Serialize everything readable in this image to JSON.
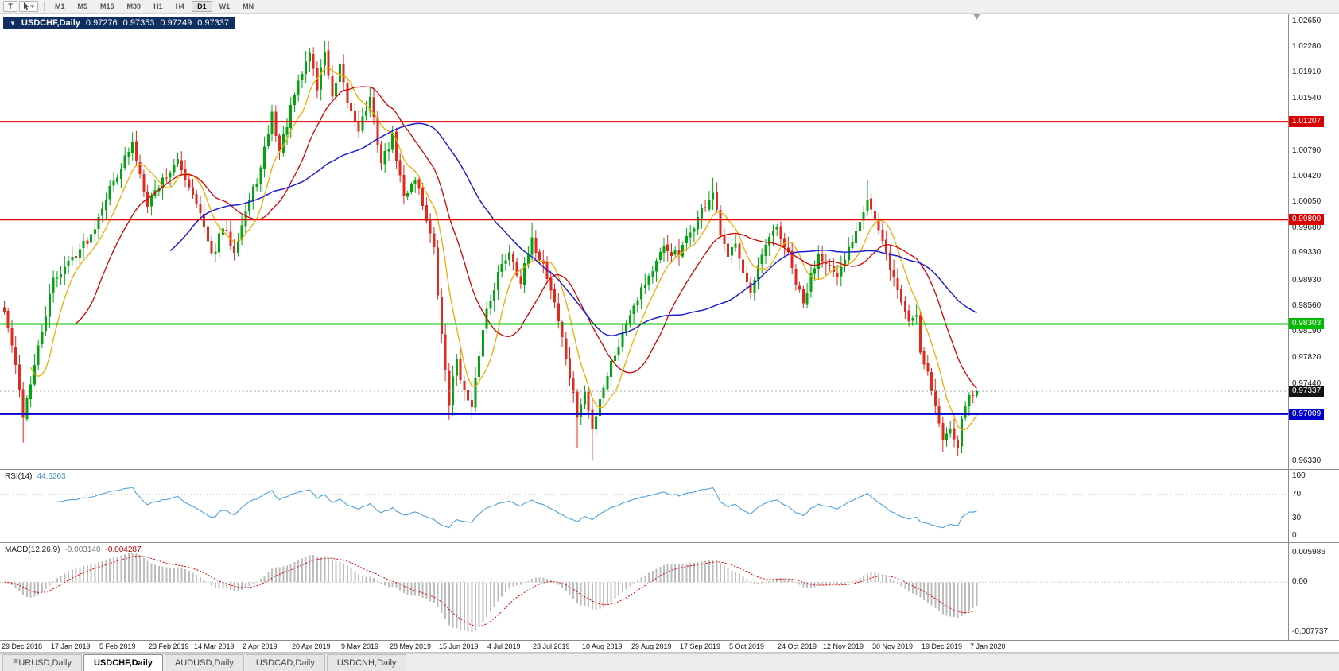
{
  "toolbar": {
    "tool_button_label": "T",
    "timeframes": [
      "M1",
      "M5",
      "M15",
      "M30",
      "H1",
      "H4",
      "D1",
      "W1",
      "MN"
    ],
    "active_timeframe": "D1"
  },
  "chart": {
    "one_click_arrow": "▼",
    "symbol_label": "USDCHF,Daily",
    "ohlc": {
      "open": "0.97276",
      "high": "0.97353",
      "low": "0.97249",
      "close": "0.97337"
    },
    "price_axis": {
      "top": 1.0276,
      "bottom": 0.9622,
      "ticks": [
        "1.02650",
        "1.02280",
        "1.01910",
        "1.01540",
        "1.00790",
        "1.00420",
        "1.00050",
        "0.99680",
        "0.99330",
        "0.98930",
        "0.98560",
        "0.98190",
        "0.97820",
        "0.97440",
        "0.96330"
      ]
    },
    "hlines": [
      {
        "price": 1.01207,
        "label": "1.01207",
        "color": "#dd0000"
      },
      {
        "price": 0.998,
        "label": "0.99800",
        "color": "#dd0000"
      },
      {
        "price": 0.98303,
        "label": "0.98303",
        "color": "#00bb00"
      },
      {
        "price": 0.97009,
        "label": "0.97009",
        "color": "#0000cc"
      }
    ],
    "current_price": {
      "value": 0.97337,
      "label": "0.97337",
      "badge_color": "#111111"
    }
  },
  "rsi": {
    "label": "RSI(14)",
    "value": "44.6263",
    "axis_ticks": [
      "100",
      "70",
      "30",
      "0"
    ],
    "levels": [
      70,
      30
    ]
  },
  "macd": {
    "label": "MACD(12,26,9)",
    "main_value": "-0.003140",
    "signal_value": "-0.004287",
    "axis_top": "0.005986",
    "axis_zero": "0.00",
    "axis_bottom": "-0.007737"
  },
  "date_axis": [
    "29 Dec 2018",
    "17 Jan 2019",
    "5 Feb 2019",
    "23 Feb 2019",
    "14 Mar 2019",
    "2 Apr 2019",
    "20 Apr 2019",
    "9 May 2019",
    "28 May 2019",
    "15 Jun 2019",
    "4 Jul 2019",
    "23 Jul 2019",
    "10 Aug 2019",
    "29 Aug 2019",
    "17 Sep 2019",
    "5 Oct 2019",
    "24 Oct 2019",
    "12 Nov 2019",
    "30 Nov 2019",
    "19 Dec 2019",
    "7 Jan 2020"
  ],
  "tabs": [
    {
      "label": "EURUSD,Daily",
      "active": false
    },
    {
      "label": "USDCHF,Daily",
      "active": true
    },
    {
      "label": "AUDUSD,Daily",
      "active": false
    },
    {
      "label": "USDCAD,Daily",
      "active": false
    },
    {
      "label": "USDCNH,Daily",
      "active": false
    }
  ],
  "colors": {
    "up": "#00a510",
    "down": "#e02a20",
    "ma_fast": "#f0ad00",
    "ma_mid": "#d40000",
    "ma_slow": "#1f1fd0",
    "rsi_line": "#4fa0dc",
    "rsi_level": "#c8c8c8",
    "macd_hist": "#bdbdbd",
    "macd_signal": "#e00000",
    "current_line": "#b0b0b0",
    "shift_marker": "#a0a0a0",
    "axis_text": "#1a1a1a"
  },
  "chart_data": {
    "type": "candlestick",
    "symbol": "USDCHF",
    "timeframe": "Daily",
    "num_candles": 259,
    "seed": 42,
    "left_pad": 4,
    "candle_spacing": 4.74,
    "candle_width": 3,
    "label_step_days": 12.85,
    "last_candle": {
      "o": 0.97276,
      "h": 0.97353,
      "l": 0.97249,
      "c": 0.97337
    },
    "indicators": {
      "ma_fast": 8,
      "ma_mid": 20,
      "ma_slow": 45,
      "rsi_period": 14,
      "macd": [
        12,
        26,
        9
      ]
    },
    "levels": [
      1.01207,
      0.998,
      0.98303,
      0.97009
    ],
    "waypoints": [
      [
        0,
        0.9848
      ],
      [
        2,
        0.98
      ],
      [
        5,
        0.97
      ],
      [
        8,
        0.977
      ],
      [
        13,
        0.9893
      ],
      [
        18,
        0.9925
      ],
      [
        23,
        0.9958
      ],
      [
        26,
        1.0002
      ],
      [
        31,
        1.0058
      ],
      [
        34,
        1.0087
      ],
      [
        38,
        1.0005
      ],
      [
        42,
        1.0038
      ],
      [
        46,
        1.0062
      ],
      [
        51,
        1.0008
      ],
      [
        55,
        0.9926
      ],
      [
        58,
        0.9968
      ],
      [
        61,
        0.9938
      ],
      [
        64,
        0.9992
      ],
      [
        68,
        1.0052
      ],
      [
        71,
        1.0132
      ],
      [
        73,
        1.0078
      ],
      [
        77,
        1.0158
      ],
      [
        81,
        1.0222
      ],
      [
        83,
        1.0168
      ],
      [
        85,
        1.0224
      ],
      [
        87,
        1.0152
      ],
      [
        89,
        1.0196
      ],
      [
        91,
        1.0148
      ],
      [
        94,
        1.0112
      ],
      [
        97,
        1.0152
      ],
      [
        100,
        1.0062
      ],
      [
        103,
        1.0098
      ],
      [
        106,
        1.0012
      ],
      [
        109,
        1.0042
      ],
      [
        112,
        0.9982
      ],
      [
        114,
        0.9935
      ],
      [
        116,
        0.9812
      ],
      [
        118,
        0.9718
      ],
      [
        120,
        0.9782
      ],
      [
        122,
        0.9732
      ],
      [
        124,
        0.9706
      ],
      [
        126,
        0.9788
      ],
      [
        128,
        0.9852
      ],
      [
        131,
        0.9902
      ],
      [
        134,
        0.9936
      ],
      [
        137,
        0.9892
      ],
      [
        140,
        0.9948
      ],
      [
        143,
        0.9916
      ],
      [
        146,
        0.9862
      ],
      [
        149,
        0.9782
      ],
      [
        152,
        0.9698
      ],
      [
        154,
        0.9732
      ],
      [
        156,
        0.9678
      ],
      [
        158,
        0.9725
      ],
      [
        161,
        0.9775
      ],
      [
        164,
        0.9815
      ],
      [
        166,
        0.9848
      ],
      [
        169,
        0.9882
      ],
      [
        172,
        0.9908
      ],
      [
        175,
        0.9938
      ],
      [
        179,
        0.9928
      ],
      [
        182,
        0.9962
      ],
      [
        185,
        0.9992
      ],
      [
        188,
        1.0018
      ],
      [
        190,
        0.9958
      ],
      [
        192,
        0.9922
      ],
      [
        194,
        0.9952
      ],
      [
        196,
        0.9908
      ],
      [
        198,
        0.9872
      ],
      [
        200,
        0.9908
      ],
      [
        202,
        0.9942
      ],
      [
        205,
        0.9968
      ],
      [
        208,
        0.9928
      ],
      [
        210,
        0.9888
      ],
      [
        212,
        0.9858
      ],
      [
        214,
        0.9898
      ],
      [
        216,
        0.9932
      ],
      [
        218,
        0.9922
      ],
      [
        221,
        0.9892
      ],
      [
        224,
        0.9938
      ],
      [
        227,
        0.9982
      ],
      [
        229,
        1.0012
      ],
      [
        232,
        0.9962
      ],
      [
        235,
        0.9912
      ],
      [
        238,
        0.9862
      ],
      [
        240,
        0.9835
      ],
      [
        242,
        0.9845
      ],
      [
        243,
        0.9792
      ],
      [
        245,
        0.9762
      ],
      [
        247,
        0.9712
      ],
      [
        249,
        0.9662
      ],
      [
        251,
        0.9685
      ],
      [
        253,
        0.9658
      ],
      [
        255,
        0.9718
      ],
      [
        258,
        0.97337
      ]
    ],
    "wick_overrides": {
      "5": {
        "lo": 0.966
      },
      "81": {
        "hi": 1.0227
      },
      "85": {
        "hi": 1.0229
      },
      "118": {
        "lo": 0.9693
      },
      "124": {
        "lo": 0.9694
      },
      "140": {
        "hi": 0.9976
      },
      "152": {
        "lo": 0.9652
      },
      "156": {
        "lo": 0.9634
      },
      "188": {
        "hi": 1.004
      },
      "229": {
        "hi": 1.0036
      },
      "249": {
        "lo": 0.9646
      },
      "253": {
        "lo": 0.9641
      }
    }
  }
}
